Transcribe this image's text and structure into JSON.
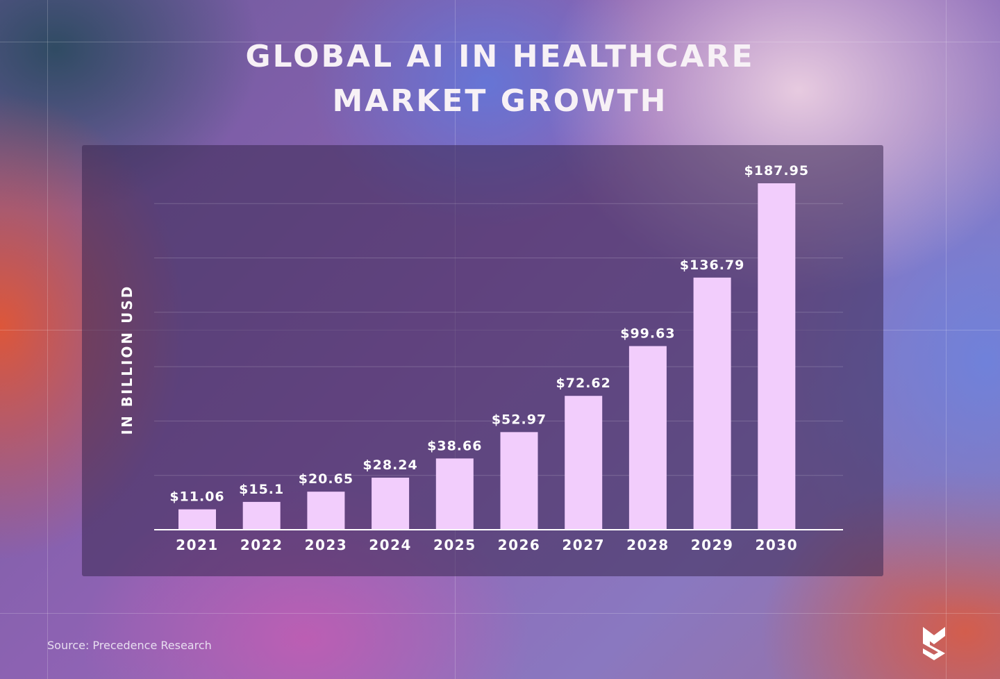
{
  "title_lines": [
    "GLOBAL AI IN HEALTHCARE",
    "MARKET GROWTH"
  ],
  "source": "Source: Precedence Research",
  "chart_data": {
    "type": "bar",
    "title": "GLOBAL AI IN HEALTHCARE MARKET GROWTH",
    "xlabel": "",
    "ylabel": "IN BILLION USD",
    "categories": [
      "2021",
      "2022",
      "2023",
      "2024",
      "2025",
      "2026",
      "2027",
      "2028",
      "2029",
      "2030"
    ],
    "values": [
      11.06,
      15.1,
      20.65,
      28.24,
      38.66,
      52.97,
      72.62,
      99.63,
      136.79,
      187.95
    ],
    "data_labels": [
      "$11.06",
      "$15.1",
      "$20.65",
      "$28.24",
      "$38.66",
      "$52.97",
      "$72.62",
      "$99.63",
      "$136.79",
      "$187.95"
    ],
    "grid": true,
    "bar_color": "#f2cdfc",
    "colors": {
      "gridline": "#ffffff",
      "text": "#ffffff"
    }
  }
}
